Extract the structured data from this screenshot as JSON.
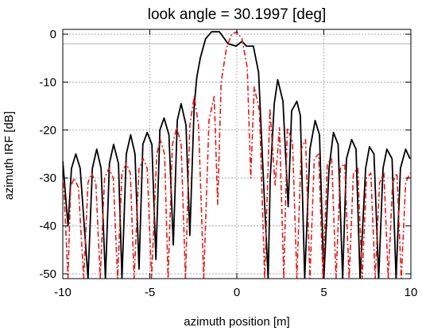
{
  "chart_data": {
    "type": "line",
    "title": "look angle = 30.1997 [deg]",
    "xlabel": "azimuth position [m]",
    "ylabel": "azimuth IRF [dB]",
    "xlim": [
      -10,
      10
    ],
    "ylim": [
      -51,
      1
    ],
    "xticks": [
      -10,
      -5,
      0,
      5,
      10
    ],
    "yticks": [
      0,
      -10,
      -20,
      -30,
      -40,
      -50
    ],
    "xtick_labels": [
      "-10",
      "-5",
      "0",
      "5",
      "10"
    ],
    "ytick_labels": [
      "0",
      "-10",
      "-20",
      "-30",
      "-40",
      "-50"
    ],
    "grid": true,
    "reference_line": {
      "y": -2,
      "color": "#b4b4b4"
    },
    "series": [
      {
        "style": "solid",
        "color": "#000000",
        "x": [
          -10.0,
          -9.7,
          -9.5,
          -9.25,
          -9.0,
          -8.55,
          -8.3,
          -8.05,
          -7.8,
          -7.55,
          -7.32,
          -7.08,
          -6.8,
          -6.6,
          -6.35,
          -6.1,
          -5.85,
          -5.62,
          -5.4,
          -5.15,
          -4.88,
          -4.65,
          -4.42,
          -4.18,
          -3.9,
          -3.65,
          -3.42,
          -3.2,
          -2.92,
          -2.7,
          -2.45,
          -2.3,
          -2.1,
          -1.8,
          -1.45,
          -1.0,
          -0.5,
          -0.05,
          0.3,
          0.55,
          0.95,
          1.25,
          1.5,
          1.8,
          1.92,
          2.15,
          2.35,
          2.65,
          2.95,
          3.15,
          3.45,
          3.65,
          3.9,
          4.2,
          4.5,
          4.75,
          5.0,
          5.3,
          5.55,
          5.82,
          6.08,
          6.3,
          6.6,
          6.85,
          7.08,
          7.4,
          7.62,
          7.88,
          8.15,
          8.4,
          8.62,
          8.92,
          9.15,
          9.4,
          9.7,
          9.95
        ],
        "y": [
          -26.5,
          -40,
          -28,
          -25,
          -28,
          -51,
          -28,
          -24,
          -28,
          -51,
          -27,
          -23,
          -27,
          -51,
          -25,
          -21,
          -25,
          -49,
          -23,
          -20.5,
          -23,
          -47,
          -20,
          -17.5,
          -21,
          -44,
          -18,
          -14.5,
          -19,
          -42,
          -15,
          -9,
          -5,
          -1,
          0.5,
          0.5,
          -2,
          -2.5,
          -1.5,
          -2.5,
          -2.5,
          -8,
          -28,
          -51,
          -30,
          -14.5,
          -9.5,
          -14,
          -36,
          -16,
          -14,
          -17,
          -51,
          -24,
          -18,
          -21,
          -51,
          -28,
          -20.5,
          -23,
          -51,
          -26,
          -22,
          -24,
          -51,
          -28,
          -23.5,
          -25,
          -51,
          -28,
          -24,
          -26,
          -51,
          -28,
          -24,
          -26
        ]
      },
      {
        "style": "dashdot",
        "color": "#e21a1a",
        "x": [
          -9.95,
          -9.7,
          -9.55,
          -9.35,
          -9.1,
          -8.8,
          -8.55,
          -8.35,
          -8.1,
          -7.85,
          -7.6,
          -7.35,
          -7.1,
          -6.85,
          -6.6,
          -6.35,
          -6.12,
          -5.9,
          -5.62,
          -5.38,
          -5.15,
          -4.9,
          -4.6,
          -4.4,
          -4.15,
          -3.95,
          -3.7,
          -3.45,
          -3.2,
          -2.95,
          -2.7,
          -2.45,
          -2.2,
          -1.9,
          -1.6,
          -1.3,
          -1.1,
          -0.9,
          -0.6,
          -0.3,
          0.0,
          0.3,
          0.6,
          0.8,
          1.0,
          1.3,
          1.6,
          1.9,
          2.2,
          2.45,
          2.7,
          2.9,
          3.2,
          3.45,
          3.7,
          3.95,
          4.2,
          4.45,
          4.7,
          4.95,
          5.2,
          5.45,
          5.7,
          5.95,
          6.2,
          6.45,
          6.7,
          6.95,
          7.2,
          7.45,
          7.7,
          7.95,
          8.2,
          8.45,
          8.7,
          8.95,
          9.2,
          9.45,
          9.7,
          9.95
        ],
        "y": [
          -31,
          -51,
          -32,
          -30,
          -32,
          -51,
          -31,
          -29,
          -31,
          -51,
          -30,
          -28,
          -30,
          -51,
          -29,
          -27,
          -29,
          -51,
          -28,
          -26,
          -28,
          -51,
          -25,
          -22,
          -25,
          -51,
          -23,
          -19.5,
          -23,
          -51,
          -19,
          -13,
          -19,
          -51,
          -18,
          -13,
          -35.5,
          -10,
          -3,
          0,
          0.5,
          -1,
          -7,
          -30,
          -11,
          -16,
          -51,
          -15.5,
          -31.5,
          -19.5,
          -51,
          -19.5,
          -22.5,
          -51,
          -24,
          -22,
          -51,
          -26,
          -25,
          -51,
          -27,
          -26,
          -51,
          -28,
          -27,
          -51,
          -29,
          -28,
          -51,
          -30,
          -29,
          -51,
          -31,
          -29,
          -51,
          -31,
          -29,
          -51,
          -31,
          -29
        ]
      }
    ]
  }
}
